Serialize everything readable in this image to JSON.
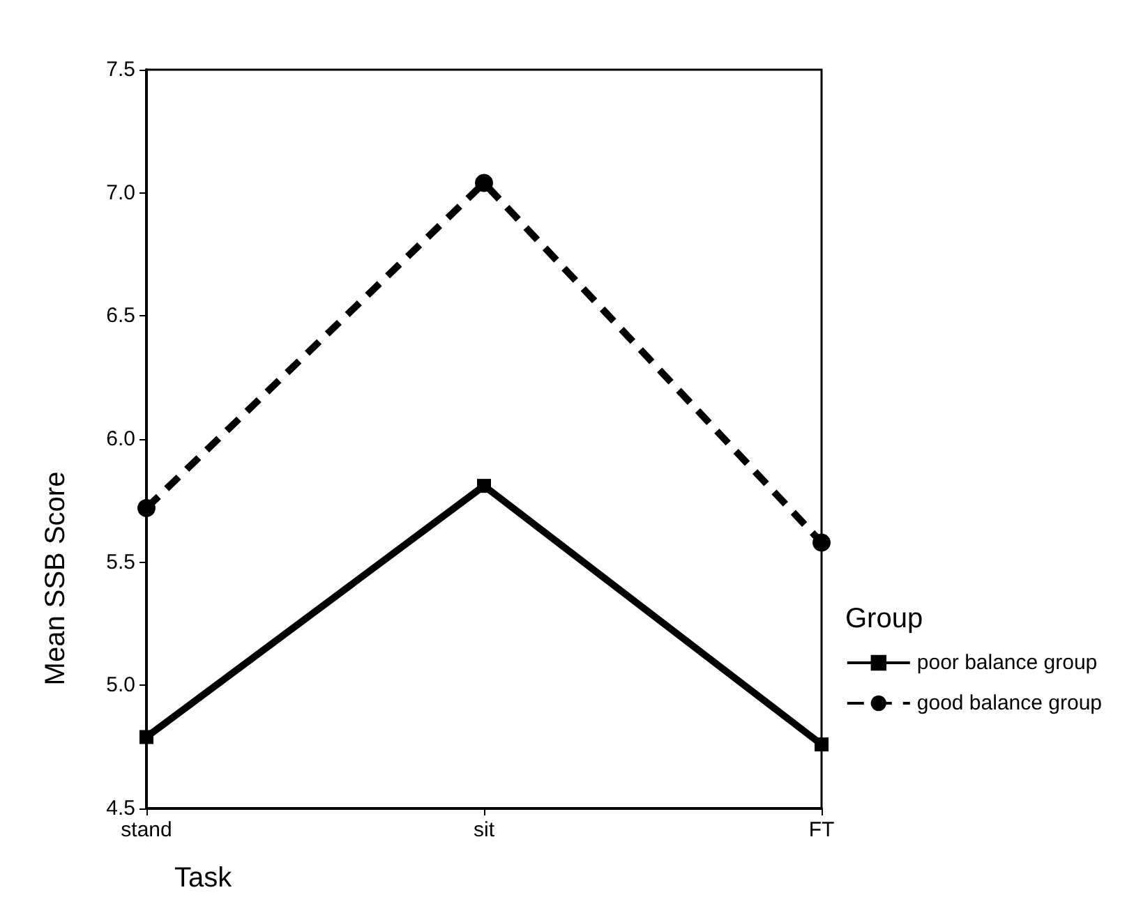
{
  "chart_data": {
    "type": "line",
    "xlabel": "Task",
    "ylabel": "Mean SSB Score",
    "legend_title": "Group",
    "categories": [
      "stand",
      "sit",
      "FT"
    ],
    "series": [
      {
        "name": "poor balance group",
        "color": "#000000",
        "values": [
          4.79,
          5.81,
          4.76
        ],
        "marker": "square",
        "line_style": "solid"
      },
      {
        "name": "good balance group",
        "color": "#000000",
        "values": [
          5.72,
          7.04,
          5.58
        ],
        "marker": "circle",
        "line_style": "dashed"
      }
    ],
    "ylim": [
      4.5,
      7.5
    ],
    "yticks": [
      {
        "value": 4.5,
        "label": "4.5"
      },
      {
        "value": 5,
        "label": "5.0"
      },
      {
        "value": 5.5,
        "label": "5.5"
      },
      {
        "value": 6,
        "label": "6.0"
      },
      {
        "value": 6.5,
        "label": "6.5"
      },
      {
        "value": 7,
        "label": "7.0"
      },
      {
        "value": 7.5,
        "label": "7.5"
      }
    ],
    "grid": false,
    "legend": "right"
  }
}
